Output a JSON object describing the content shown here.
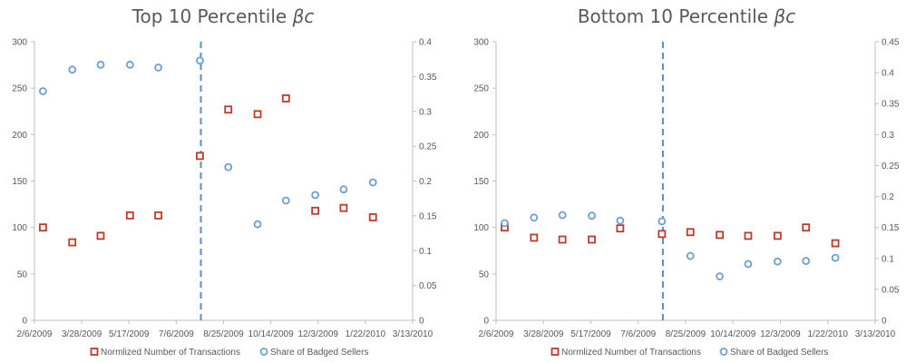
{
  "chart_data": [
    {
      "type": "scatter",
      "title": {
        "main": "Top 10 Percentile ",
        "symbol": "βc"
      },
      "x_ticks": [
        "2/6/2009",
        "3/28/2009",
        "5/17/2009",
        "7/6/2009",
        "8/25/2009",
        "10/14/2009",
        "12/3/2009",
        "1/22/2010",
        "3/13/2010"
      ],
      "xlim": [
        "2009-02-06",
        "2010-03-13"
      ],
      "ylim_left": [
        0,
        300
      ],
      "y_ticks_left": [
        "0",
        "50",
        "100",
        "150",
        "200",
        "250",
        "300"
      ],
      "ylim_right": [
        0,
        0.4
      ],
      "y_ticks_right": [
        "0",
        "0.05",
        "0.1",
        "0.15",
        "0.2",
        "0.25",
        "0.3",
        "0.35",
        "0.4"
      ],
      "vline_x": "2009-08-01",
      "grid": false,
      "legend_position": "bottom",
      "series": [
        {
          "name": "Normlized Number of Transactions",
          "axis": "left",
          "marker": "square",
          "color": "#c0392b",
          "x": [
            "2009-02-15",
            "2009-03-18",
            "2009-04-17",
            "2009-05-18",
            "2009-06-17",
            "2009-07-31",
            "2009-08-30",
            "2009-09-30",
            "2009-10-30",
            "2009-11-30",
            "2009-12-30",
            "2010-01-30"
          ],
          "y": [
            100,
            84,
            91,
            113,
            113,
            177,
            227,
            222,
            239,
            118,
            121,
            111
          ]
        },
        {
          "name": "Share of Badged Sellers",
          "axis": "right",
          "marker": "circle",
          "color": "#6d9fcf",
          "x": [
            "2009-02-15",
            "2009-03-18",
            "2009-04-17",
            "2009-05-18",
            "2009-06-17",
            "2009-07-31",
            "2009-08-30",
            "2009-09-30",
            "2009-10-30",
            "2009-11-30",
            "2009-12-30",
            "2010-01-30"
          ],
          "y": [
            0.329,
            0.36,
            0.367,
            0.367,
            0.363,
            0.373,
            0.22,
            0.138,
            0.172,
            0.18,
            0.188,
            0.198
          ]
        }
      ]
    },
    {
      "type": "scatter",
      "title": {
        "main": "Bottom 10 Percentile ",
        "symbol": "βc"
      },
      "x_ticks": [
        "2/6/2009",
        "3/28/2009",
        "5/17/2009",
        "7/6/2009",
        "8/25/2009",
        "10/14/2009",
        "12/3/2009",
        "1/22/2010",
        "3/13/2010"
      ],
      "xlim": [
        "2009-02-06",
        "2010-03-13"
      ],
      "ylim_left": [
        0,
        300
      ],
      "y_ticks_left": [
        "0",
        "50",
        "100",
        "150",
        "200",
        "250",
        "300"
      ],
      "ylim_right": [
        0,
        0.45
      ],
      "y_ticks_right": [
        "0",
        "0.05",
        "0.1",
        "0.15",
        "0.2",
        "0.25",
        "0.3",
        "0.35",
        "0.4",
        "0.45"
      ],
      "vline_x": "2009-08-01",
      "grid": false,
      "legend_position": "bottom",
      "series": [
        {
          "name": "Normlized Number of Transactions",
          "axis": "left",
          "marker": "square",
          "color": "#c0392b",
          "x": [
            "2009-02-15",
            "2009-03-18",
            "2009-04-17",
            "2009-05-18",
            "2009-06-17",
            "2009-07-31",
            "2009-08-30",
            "2009-09-30",
            "2009-10-30",
            "2009-11-30",
            "2009-12-30",
            "2010-01-30"
          ],
          "y": [
            100,
            89,
            87,
            87,
            99,
            93,
            95,
            92,
            91,
            91,
            100,
            83
          ]
        },
        {
          "name": "Share of Badged Sellers",
          "axis": "right",
          "marker": "circle",
          "color": "#6d9fcf",
          "x": [
            "2009-02-15",
            "2009-03-18",
            "2009-04-17",
            "2009-05-18",
            "2009-06-17",
            "2009-07-31",
            "2009-08-30",
            "2009-09-30",
            "2009-10-30",
            "2009-11-30",
            "2009-12-30",
            "2010-01-30"
          ],
          "y": [
            0.157,
            0.166,
            0.17,
            0.169,
            0.161,
            0.16,
            0.104,
            0.071,
            0.091,
            0.095,
            0.096,
            0.101
          ]
        }
      ]
    }
  ]
}
